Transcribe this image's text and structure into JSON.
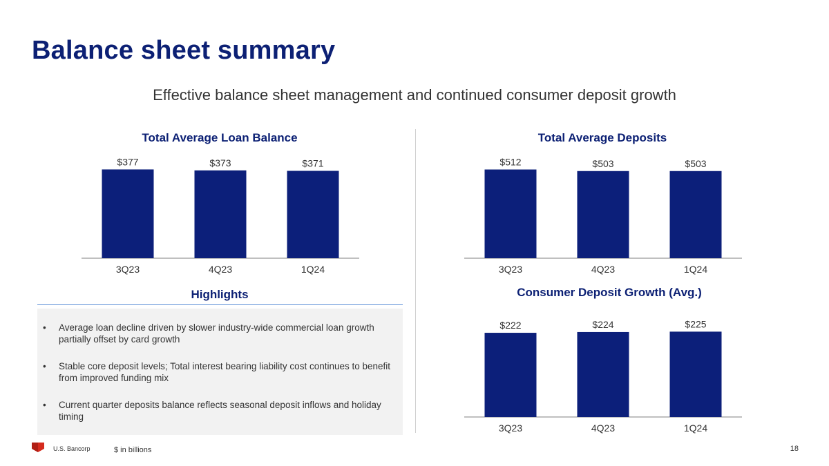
{
  "slide": {
    "title": "Balance sheet summary",
    "subtitle": "Effective balance sheet management and continued consumer deposit growth",
    "brand": "U.S. Bancorp",
    "footnote": "$ in billions",
    "page_number": "18"
  },
  "colors": {
    "bar": "#0c1f7a",
    "title": "#0c2074",
    "axis": "#bfbfbf"
  },
  "highlights": {
    "title": "Highlights",
    "items": [
      "Average loan decline driven by slower industry-wide commercial loan growth partially offset by card growth",
      "Stable core deposit levels; Total interest bearing liability cost continues to benefit from improved funding mix",
      "Current quarter deposits balance reflects seasonal deposit inflows and holiday timing"
    ]
  },
  "chart_data": [
    {
      "type": "bar",
      "title": "Total Average Loan Balance",
      "categories": [
        "3Q23",
        "4Q23",
        "1Q24"
      ],
      "values": [
        377,
        373,
        371
      ],
      "labels": [
        "$377",
        "$373",
        "$371"
      ],
      "xlabel": "",
      "ylabel": "",
      "ylim": [
        0,
        390
      ],
      "grid": false
    },
    {
      "type": "bar",
      "title": "Total Average Deposits",
      "categories": [
        "3Q23",
        "4Q23",
        "1Q24"
      ],
      "values": [
        512,
        503,
        503
      ],
      "labels": [
        "$512",
        "$503",
        "$503"
      ],
      "xlabel": "",
      "ylabel": "",
      "ylim": [
        0,
        530
      ],
      "grid": false
    },
    {
      "type": "bar",
      "title": "Consumer Deposit Growth (Avg.)",
      "categories": [
        "3Q23",
        "4Q23",
        "1Q24"
      ],
      "values": [
        222,
        224,
        225
      ],
      "labels": [
        "$222",
        "$224",
        "$225"
      ],
      "xlabel": "",
      "ylabel": "",
      "ylim": [
        0,
        233
      ],
      "grid": false
    }
  ]
}
